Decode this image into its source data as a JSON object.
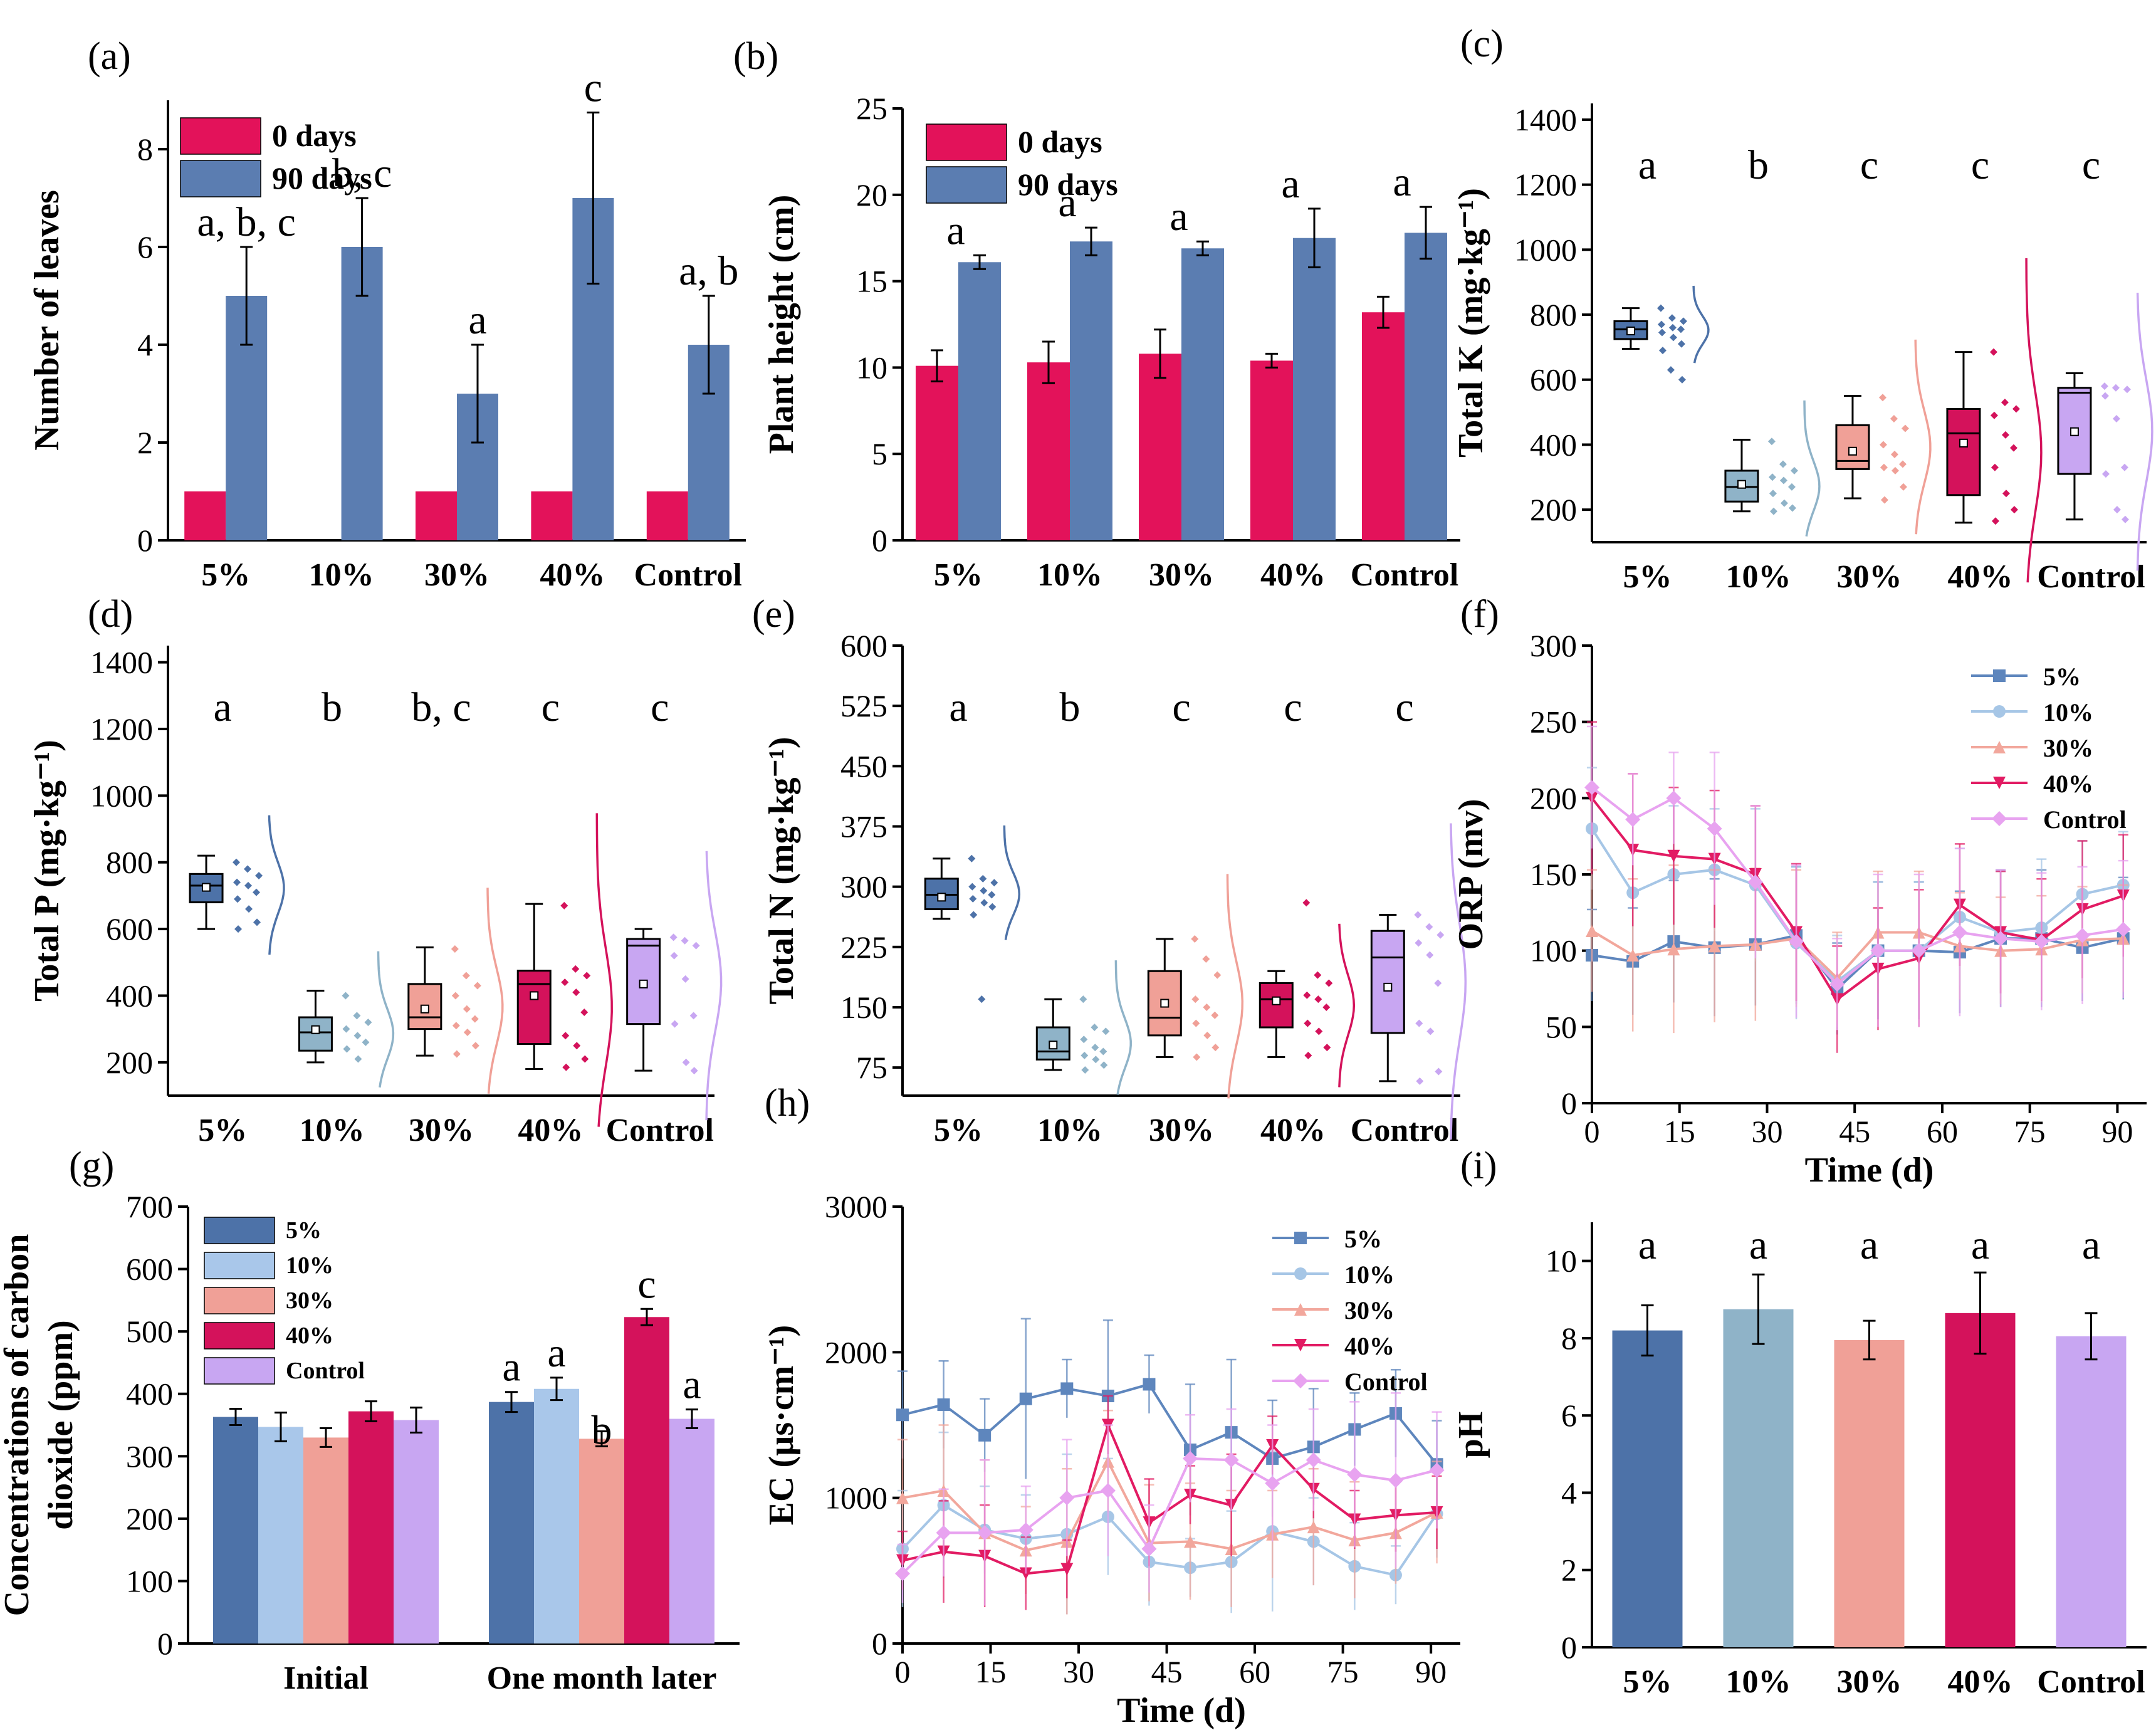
{
  "colors": {
    "day0": "#E3125A",
    "day90": "#5B7DB1",
    "p5": "#4D72A8",
    "p10": "#8FB3C8",
    "p30": "#F0A097",
    "p40": "#D4125B",
    "pctrl": "#C8A6F2",
    "g10": "#A9C7EA",
    "ln5": "#5E86BD",
    "ln10": "#A6C6E6",
    "ln30": "#F2A79C",
    "ln40": "#E21B63",
    "lnctrl": "#E8A3F0"
  },
  "chart_data": [
    {
      "id": "a",
      "panel": "(a)",
      "type": "bar",
      "categories": [
        "5%",
        "10%",
        "30%",
        "40%",
        "Control"
      ],
      "ylabel": "Number of leaves",
      "ylim": [
        0,
        9
      ],
      "yticks": [
        0,
        2,
        4,
        6,
        8
      ],
      "series": [
        {
          "name": "0 days",
          "values": [
            1,
            0,
            1,
            1,
            1
          ],
          "errors": [
            0,
            0,
            0,
            0,
            0
          ]
        },
        {
          "name": "90 days",
          "values": [
            5,
            6,
            3,
            7,
            4
          ],
          "errors": [
            1,
            1,
            1,
            1.75,
            1
          ]
        }
      ],
      "letters": [
        "a, b, c",
        "b, c",
        "a",
        "c",
        "a, b"
      ]
    },
    {
      "id": "b",
      "panel": "(b)",
      "type": "bar",
      "categories": [
        "5%",
        "10%",
        "30%",
        "40%",
        "Control"
      ],
      "ylabel": "Plant height (cm)",
      "ylim": [
        0,
        25
      ],
      "yticks": [
        0,
        5,
        10,
        15,
        20,
        25
      ],
      "series": [
        {
          "name": "0 days",
          "values": [
            10.1,
            10.3,
            10.8,
            10.4,
            13.2
          ],
          "errors": [
            0.9,
            1.2,
            1.4,
            0.4,
            0.9
          ]
        },
        {
          "name": "90 days",
          "values": [
            16.1,
            17.3,
            16.9,
            17.5,
            17.8
          ],
          "errors": [
            0.4,
            0.8,
            0.4,
            1.7,
            1.5
          ]
        }
      ],
      "letters": [
        "a",
        "a",
        "a",
        "a",
        "a"
      ]
    },
    {
      "id": "c",
      "panel": "(c)",
      "type": "box",
      "categories": [
        "5%",
        "10%",
        "30%",
        "40%",
        "Control"
      ],
      "ylabel": "Total K (mg·kg⁻¹)",
      "ylim": [
        100,
        1450
      ],
      "yticks": [
        200,
        400,
        600,
        800,
        1000,
        1200,
        1400
      ],
      "boxes": [
        {
          "min": 695,
          "q1": 725,
          "median": 755,
          "q3": 780,
          "max": 820,
          "mean": 750,
          "points": [
            820,
            790,
            780,
            770,
            760,
            755,
            745,
            730,
            710,
            690,
            630,
            600
          ]
        },
        {
          "min": 195,
          "q1": 225,
          "median": 270,
          "q3": 320,
          "max": 415,
          "mean": 278,
          "points": [
            410,
            340,
            320,
            300,
            290,
            270,
            250,
            220,
            205,
            195
          ]
        },
        {
          "min": 235,
          "q1": 325,
          "median": 350,
          "q3": 460,
          "max": 550,
          "mean": 380,
          "points": [
            545,
            480,
            450,
            400,
            370,
            340,
            330,
            320,
            270,
            230
          ]
        },
        {
          "min": 160,
          "q1": 245,
          "median": 435,
          "q3": 510,
          "max": 685,
          "mean": 405,
          "points": [
            685,
            530,
            510,
            490,
            430,
            390,
            330,
            250,
            200,
            165
          ]
        },
        {
          "min": 170,
          "q1": 310,
          "median": 560,
          "q3": 575,
          "max": 620,
          "mean": 440,
          "points": [
            580,
            575,
            570,
            550,
            480,
            330,
            310,
            200,
            170
          ]
        }
      ],
      "letters": [
        "a",
        "b",
        "c",
        "c",
        "c"
      ]
    },
    {
      "id": "d",
      "panel": "(d)",
      "type": "box",
      "categories": [
        "5%",
        "10%",
        "30%",
        "40%",
        "Control"
      ],
      "ylabel": "Total P (mg·kg⁻¹)",
      "ylim": [
        100,
        1450
      ],
      "yticks": [
        200,
        400,
        600,
        800,
        1000,
        1200,
        1400
      ],
      "boxes": [
        {
          "min": 600,
          "q1": 680,
          "median": 730,
          "q3": 765,
          "max": 820,
          "mean": 725,
          "points": [
            800,
            780,
            760,
            740,
            730,
            710,
            690,
            660,
            620,
            600
          ]
        },
        {
          "min": 200,
          "q1": 235,
          "median": 290,
          "q3": 335,
          "max": 415,
          "mean": 298,
          "points": [
            400,
            340,
            320,
            300,
            280,
            260,
            240,
            210
          ]
        },
        {
          "min": 220,
          "q1": 300,
          "median": 335,
          "q3": 435,
          "max": 545,
          "mean": 360,
          "points": [
            540,
            460,
            430,
            400,
            360,
            330,
            310,
            290,
            250,
            225
          ]
        },
        {
          "min": 180,
          "q1": 255,
          "median": 435,
          "q3": 475,
          "max": 675,
          "mean": 400,
          "points": [
            670,
            480,
            460,
            440,
            410,
            350,
            280,
            250,
            210,
            185
          ]
        },
        {
          "min": 175,
          "q1": 315,
          "median": 550,
          "q3": 570,
          "max": 600,
          "mean": 435,
          "points": [
            575,
            565,
            550,
            520,
            450,
            340,
            315,
            200,
            175
          ]
        }
      ],
      "letters": [
        "a",
        "b",
        "b, c",
        "c",
        "c"
      ]
    },
    {
      "id": "e",
      "panel": "(e)",
      "type": "box",
      "categories": [
        "5%",
        "10%",
        "30%",
        "40%",
        "Control"
      ],
      "ylabel": "Total N (mg·kg⁻¹)",
      "ylim": [
        40,
        600
      ],
      "yticks": [
        75,
        150,
        225,
        300,
        375,
        450,
        525,
        600
      ],
      "boxes": [
        {
          "min": 260,
          "q1": 272,
          "median": 290,
          "q3": 310,
          "max": 335,
          "mean": 287,
          "points": [
            335,
            310,
            305,
            300,
            295,
            290,
            285,
            280,
            275,
            265,
            160
          ]
        },
        {
          "min": 72,
          "q1": 85,
          "median": 95,
          "q3": 125,
          "max": 160,
          "mean": 103,
          "points": [
            160,
            125,
            120,
            110,
            100,
            95,
            90,
            85,
            78,
            72
          ]
        },
        {
          "min": 88,
          "q1": 115,
          "median": 137,
          "q3": 195,
          "max": 235,
          "mean": 155,
          "points": [
            235,
            210,
            190,
            160,
            150,
            140,
            130,
            115,
            100,
            88
          ]
        },
        {
          "min": 88,
          "q1": 125,
          "median": 160,
          "q3": 180,
          "max": 195,
          "mean": 158,
          "points": [
            280,
            190,
            180,
            165,
            160,
            150,
            130,
            120,
            100,
            90
          ]
        },
        {
          "min": 58,
          "q1": 118,
          "median": 212,
          "q3": 245,
          "max": 265,
          "mean": 175,
          "points": [
            265,
            250,
            240,
            230,
            215,
            180,
            130,
            120,
            70,
            58
          ]
        }
      ],
      "letters": [
        "a",
        "b",
        "c",
        "c",
        "c"
      ]
    },
    {
      "id": "f",
      "panel": "(f)",
      "type": "line",
      "xlabel": "Time (d)",
      "ylabel": "ORP (mv)",
      "xlim": [
        0,
        95
      ],
      "ylim": [
        0,
        300
      ],
      "xticks": [
        0,
        15,
        30,
        45,
        60,
        75,
        90
      ],
      "yticks": [
        0,
        50,
        100,
        150,
        200,
        250,
        300
      ],
      "x": [
        0,
        7,
        14,
        21,
        28,
        35,
        42,
        49,
        56,
        63,
        70,
        77,
        84,
        91
      ],
      "series": [
        {
          "name": "5%",
          "marker": "square",
          "values": [
            97,
            93,
            106,
            102,
            104,
            110,
            75,
            100,
            100,
            99,
            108,
            108,
            102,
            108
          ],
          "errors": [
            30,
            35,
            40,
            45,
            40,
            45,
            30,
            45,
            45,
            40,
            45,
            45,
            35,
            40
          ]
        },
        {
          "name": "10%",
          "marker": "circle",
          "values": [
            180,
            138,
            150,
            153,
            143,
            105,
            80,
            100,
            100,
            122,
            112,
            115,
            137,
            143
          ],
          "errors": [
            40,
            50,
            45,
            40,
            50,
            50,
            30,
            45,
            45,
            45,
            40,
            45,
            35,
            35
          ]
        },
        {
          "name": "30%",
          "marker": "triangle",
          "values": [
            113,
            97,
            101,
            103,
            104,
            108,
            82,
            112,
            112,
            103,
            100,
            101,
            107,
            108
          ],
          "errors": [
            40,
            50,
            55,
            50,
            50,
            45,
            30,
            40,
            40,
            35,
            35,
            35,
            35,
            35
          ]
        },
        {
          "name": "40%",
          "marker": "tri-down",
          "values": [
            200,
            166,
            162,
            160,
            150,
            112,
            68,
            88,
            95,
            130,
            112,
            107,
            127,
            136
          ],
          "errors": [
            50,
            50,
            45,
            45,
            45,
            45,
            35,
            40,
            45,
            40,
            40,
            40,
            45,
            40
          ]
        },
        {
          "name": "Control",
          "marker": "diamond",
          "values": [
            207,
            186,
            200,
            180,
            145,
            106,
            78,
            100,
            100,
            112,
            108,
            106,
            110,
            114
          ],
          "errors": [
            40,
            30,
            30,
            50,
            50,
            50,
            30,
            50,
            50,
            55,
            45,
            45,
            45,
            45
          ]
        }
      ]
    },
    {
      "id": "g",
      "panel": "(g)",
      "type": "bar",
      "categories": [
        "Initial",
        "One month later"
      ],
      "ylabel": "Concentrations of carbon dioxide (ppm)",
      "ylabel_lines": [
        "Concentrations of carbon",
        "dioxide (ppm)"
      ],
      "ylim": [
        0,
        700
      ],
      "yticks": [
        0,
        100,
        200,
        300,
        400,
        500,
        600,
        700
      ],
      "series": [
        {
          "name": "5%",
          "values": [
            363,
            387
          ],
          "errors": [
            13,
            16
          ]
        },
        {
          "name": "10%",
          "values": [
            347,
            408
          ],
          "errors": [
            23,
            18
          ]
        },
        {
          "name": "30%",
          "values": [
            330,
            328
          ],
          "errors": [
            15,
            12
          ]
        },
        {
          "name": "40%",
          "values": [
            372,
            523
          ],
          "errors": [
            16,
            13
          ]
        },
        {
          "name": "Control",
          "values": [
            358,
            360
          ],
          "errors": [
            20,
            15
          ]
        }
      ],
      "letters_group": 1,
      "letters": [
        "a",
        "a",
        "b",
        "c",
        "a"
      ]
    },
    {
      "id": "h",
      "panel": "(h)",
      "type": "line",
      "xlabel": "Time (d)",
      "ylabel": "EC (µs·cm⁻¹)",
      "xlim": [
        0,
        95
      ],
      "ylim": [
        0,
        3000
      ],
      "xticks": [
        0,
        15,
        30,
        45,
        60,
        75,
        90
      ],
      "yticks": [
        0,
        1000,
        2000,
        3000
      ],
      "x": [
        0,
        7,
        14,
        21,
        28,
        35,
        42,
        49,
        56,
        63,
        70,
        77,
        84,
        91
      ],
      "series": [
        {
          "name": "5%",
          "marker": "square",
          "values": [
            1570,
            1640,
            1430,
            1680,
            1750,
            1700,
            1780,
            1330,
            1450,
            1270,
            1350,
            1470,
            1580,
            1230
          ],
          "errors": [
            300,
            300,
            250,
            550,
            200,
            520,
            200,
            450,
            500,
            400,
            400,
            250,
            300,
            300
          ]
        },
        {
          "name": "10%",
          "marker": "circle",
          "values": [
            650,
            950,
            780,
            720,
            750,
            870,
            560,
            520,
            560,
            770,
            700,
            530,
            470,
            890
          ],
          "errors": [
            400,
            500,
            300,
            300,
            550,
            400,
            300,
            200,
            350,
            550,
            300,
            300,
            200,
            300
          ]
        },
        {
          "name": "30%",
          "marker": "triangle",
          "values": [
            1000,
            1050,
            760,
            640,
            700,
            1250,
            690,
            700,
            650,
            750,
            800,
            710,
            760,
            900
          ],
          "errors": [
            400,
            450,
            500,
            300,
            500,
            350,
            400,
            400,
            400,
            300,
            400,
            400,
            350,
            350
          ]
        },
        {
          "name": "40%",
          "marker": "tri-down",
          "values": [
            570,
            630,
            600,
            480,
            510,
            1500,
            830,
            1020,
            950,
            1360,
            1060,
            850,
            880,
            900
          ],
          "errors": [
            200,
            350,
            350,
            250,
            200,
            200,
            300,
            200,
            350,
            200,
            200,
            200,
            250,
            250
          ]
        },
        {
          "name": "Control",
          "marker": "diamond",
          "values": [
            480,
            760,
            760,
            780,
            1000,
            1050,
            650,
            1270,
            1260,
            1100,
            1260,
            1160,
            1120,
            1190
          ],
          "errors": [
            200,
            300,
            500,
            300,
            400,
            450,
            300,
            300,
            350,
            400,
            350,
            500,
            600,
            400
          ]
        }
      ]
    },
    {
      "id": "i",
      "panel": "(i)",
      "type": "bar",
      "categories": [
        "5%",
        "10%",
        "30%",
        "40%",
        "Control"
      ],
      "ylabel": "pH",
      "ylim": [
        0,
        11
      ],
      "yticks": [
        0,
        2,
        4,
        6,
        8,
        10
      ],
      "values": [
        8.2,
        8.75,
        7.95,
        8.65,
        8.05
      ],
      "errors": [
        0.65,
        0.9,
        0.5,
        1.05,
        0.6
      ],
      "letters": [
        "a",
        "a",
        "a",
        "a",
        "a"
      ]
    }
  ]
}
